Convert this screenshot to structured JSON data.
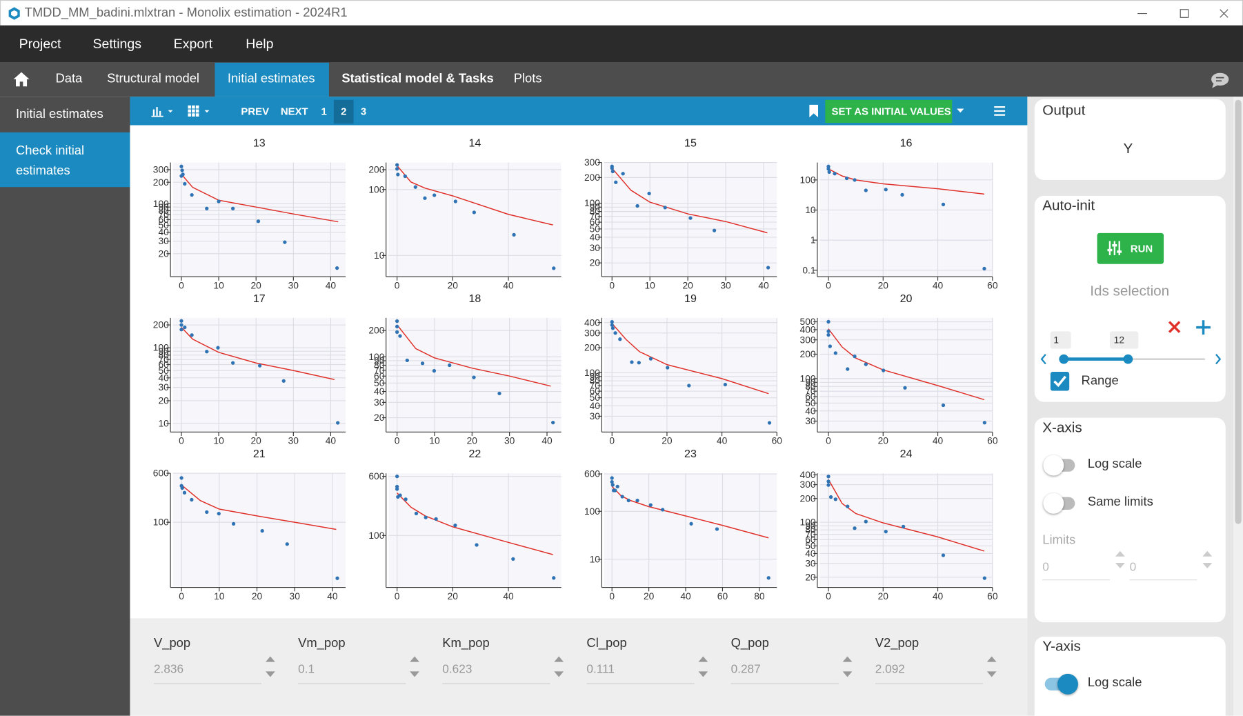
{
  "window": {
    "title": "TMDD_MM_badini.mlxtran - Monolix estimation - 2024R1"
  },
  "menu": [
    "Project",
    "Settings",
    "Export",
    "Help"
  ],
  "tabs": [
    "Data",
    "Structural model",
    "Initial estimates",
    "Statistical model & Tasks",
    "Plots"
  ],
  "sidebar": [
    "Initial estimates",
    "Check initial estimates"
  ],
  "toolbar": {
    "prev": "PREV",
    "next": "NEXT",
    "pages": [
      1,
      2,
      3
    ],
    "set_button": "SET AS INITIAL VALUES"
  },
  "chart_data": [
    {
      "type": "scatter",
      "title": "13",
      "log_y": true,
      "grid": true,
      "point_color": "#2f73b4",
      "line_color": "#e0302a",
      "xlim": [
        -2.3,
        44
      ],
      "ylim": [
        9.8,
        378
      ],
      "xticks": [
        0,
        10,
        20,
        30,
        40
      ],
      "yticks": [
        300,
        200,
        100,
        90,
        80,
        70,
        60,
        50,
        40,
        30,
        20
      ],
      "x": [
        0,
        0.2,
        0,
        0.4,
        0.9,
        2.8,
        6.8,
        10,
        13.8,
        20.6,
        27.7,
        41.7
      ],
      "values": [
        333,
        294,
        245,
        258,
        190,
        133,
        86,
        108,
        86,
        57,
        29,
        12.6
      ],
      "fit_x": [
        0,
        3,
        10,
        20,
        30,
        42
      ],
      "fit_values": [
        260,
        170,
        112,
        90,
        72,
        56
      ]
    },
    {
      "type": "scatter",
      "title": "14",
      "log_y": true,
      "grid": true,
      "point_color": "#2f73b4",
      "line_color": "#e0302a",
      "xlim": [
        -3.1,
        59
      ],
      "ylim": [
        4.9,
        257
      ],
      "xticks": [
        0,
        20,
        40
      ],
      "yticks": [
        200,
        100,
        10
      ],
      "x": [
        0,
        0,
        0.3,
        2.9,
        6.6,
        10,
        13.4,
        21,
        27.7,
        42,
        56.3
      ],
      "values": [
        236,
        206,
        169,
        159,
        109,
        74,
        82,
        66,
        45,
        20.6,
        6.4
      ],
      "fit_x": [
        0,
        5,
        10,
        20,
        40,
        56
      ],
      "fit_values": [
        230,
        130,
        105,
        80,
        42,
        29
      ]
    },
    {
      "type": "scatter",
      "title": "15",
      "log_y": true,
      "grid": true,
      "point_color": "#2f73b4",
      "line_color": "#e0302a",
      "xlim": [
        -2.1,
        43.5
      ],
      "ylim": [
        14.1,
        300
      ],
      "xticks": [
        0,
        10,
        20,
        30,
        40
      ],
      "yticks": [
        300,
        200,
        100,
        90,
        80,
        70,
        60,
        50,
        40,
        30,
        20
      ],
      "x": [
        0,
        0,
        0.2,
        1,
        2.9,
        6.7,
        9.8,
        14,
        20.7,
        27,
        41.2
      ],
      "values": [
        270,
        258,
        236,
        176,
        222,
        93,
        130,
        89,
        67,
        48,
        17.6
      ],
      "fit_x": [
        0,
        5,
        10,
        20,
        30,
        41
      ],
      "fit_values": [
        258,
        142,
        103,
        75,
        61,
        45
      ]
    },
    {
      "type": "scatter",
      "title": "16",
      "log_y": true,
      "grid": true,
      "point_color": "#2f73b4",
      "line_color": "#e0302a",
      "xlim": [
        -3.2,
        60
      ],
      "ylim": [
        0.065,
        379
      ],
      "xticks": [
        0,
        20,
        40,
        60
      ],
      "yticks": [
        100,
        10,
        1,
        0.1
      ],
      "x": [
        0,
        0,
        0.3,
        2.3,
        6.7,
        9.6,
        13.7,
        21,
        27,
        42,
        57
      ],
      "values": [
        280,
        233,
        183,
        162,
        113,
        100,
        45,
        48,
        32,
        15.3,
        0.113
      ],
      "fit_x": [
        0,
        5,
        10,
        20,
        40,
        57
      ],
      "fit_values": [
        233,
        135,
        100,
        74,
        51,
        34
      ]
    },
    {
      "type": "scatter",
      "title": "17",
      "log_y": true,
      "grid": true,
      "point_color": "#2f73b4",
      "line_color": "#e0302a",
      "xlim": [
        -2.3,
        44
      ],
      "ylim": [
        7.9,
        248
      ],
      "xticks": [
        0,
        10,
        20,
        30,
        40
      ],
      "yticks": [
        200,
        100,
        90,
        80,
        70,
        60,
        50,
        40,
        30,
        20,
        10
      ],
      "x": [
        0,
        0,
        0,
        0.9,
        2.8,
        6.8,
        9.8,
        13.8,
        21,
        27.4,
        41.9
      ],
      "values": [
        226,
        200,
        174,
        186,
        147,
        89,
        100,
        63,
        58,
        36.5,
        10.2
      ],
      "fit_x": [
        0,
        3,
        10,
        20,
        30,
        41
      ],
      "fit_values": [
        186,
        130,
        87,
        63,
        50,
        38
      ]
    },
    {
      "type": "scatter",
      "title": "18",
      "log_y": true,
      "grid": true,
      "point_color": "#2f73b4",
      "line_color": "#e0302a",
      "xlim": [
        -2.3,
        43.8
      ],
      "ylim": [
        14,
        279
      ],
      "xticks": [
        0,
        10,
        20,
        30,
        40
      ],
      "yticks": [
        200,
        100,
        90,
        80,
        70,
        60,
        50,
        40,
        30,
        20
      ],
      "x": [
        0,
        0,
        0,
        0.8,
        2.7,
        6.8,
        9.9,
        14,
        20.5,
        27.3,
        41.6
      ],
      "values": [
        256,
        222,
        192,
        173,
        91,
        84,
        69,
        80,
        58,
        38,
        17.6
      ],
      "fit_x": [
        0,
        5,
        10,
        20,
        30,
        41
      ],
      "fit_values": [
        232,
        124,
        97,
        74,
        60,
        46
      ]
    },
    {
      "type": "scatter",
      "title": "19",
      "log_y": true,
      "grid": true,
      "point_color": "#2f73b4",
      "line_color": "#e0302a",
      "xlim": [
        -2.9,
        60
      ],
      "ylim": [
        19.8,
        456
      ],
      "xticks": [
        0,
        20,
        40,
        60
      ],
      "yticks": [
        400,
        300,
        200,
        100,
        90,
        80,
        70,
        60,
        50,
        40,
        30
      ],
      "x": [
        0,
        0,
        0.3,
        1.2,
        2.9,
        7.2,
        9.8,
        14.1,
        20.2,
        28,
        41.2,
        57.3
      ],
      "values": [
        408,
        374,
        343,
        300,
        253,
        134,
        132,
        147,
        115,
        70,
        72,
        25
      ],
      "fit_x": [
        0,
        5,
        10,
        20,
        40,
        57
      ],
      "fit_values": [
        390,
        253,
        179,
        125,
        85,
        56
      ]
    },
    {
      "type": "scatter",
      "title": "20",
      "log_y": true,
      "grid": true,
      "point_color": "#2f73b4",
      "line_color": "#e0302a",
      "xlim": [
        -3.2,
        60
      ],
      "ylim": [
        22.5,
        559
      ],
      "xticks": [
        0,
        20,
        40,
        60
      ],
      "yticks": [
        500,
        400,
        300,
        200,
        100,
        90,
        80,
        70,
        60,
        50,
        40,
        30
      ],
      "x": [
        0,
        0,
        0,
        0.6,
        2.6,
        7,
        9.6,
        13.7,
        20.1,
        28,
        42,
        57.1
      ],
      "values": [
        501,
        382,
        345,
        250,
        206,
        131,
        188,
        150,
        126,
        77,
        47,
        28.7
      ],
      "fit_x": [
        0,
        5,
        10,
        20,
        40,
        57
      ],
      "fit_values": [
        410,
        245,
        179,
        128,
        82,
        55
      ]
    },
    {
      "type": "scatter",
      "title": "21",
      "log_y": true,
      "grid": true,
      "point_color": "#2f73b4",
      "line_color": "#e0302a",
      "xlim": [
        -2.3,
        43.5
      ],
      "ylim": [
        9.5,
        600
      ],
      "xticks": [
        0,
        10,
        20,
        30,
        40
      ],
      "yticks": [
        600,
        100
      ],
      "x": [
        0,
        0,
        0.2,
        0.8,
        2.7,
        6.7,
        9.9,
        13.8,
        21.4,
        28,
        41.3
      ],
      "values": [
        505,
        380,
        350,
        295,
        228,
        145,
        137,
        94.5,
        73,
        45,
        12.9
      ],
      "fit_x": [
        0,
        5,
        10,
        20,
        30,
        41
      ],
      "fit_values": [
        391,
        221,
        162,
        126,
        100,
        77
      ]
    },
    {
      "type": "scatter",
      "title": "22",
      "log_y": true,
      "grid": true,
      "point_color": "#2f73b4",
      "line_color": "#e0302a",
      "xlim": [
        -3.1,
        59
      ],
      "ylim": [
        21.2,
        660
      ],
      "xticks": [
        0,
        20,
        40
      ],
      "yticks": [
        600,
        100
      ],
      "x": [
        0,
        0,
        0,
        0.3,
        1.1,
        3.1,
        6.9,
        10.3,
        14,
        20.9,
        28.6,
        41.7,
        56.3
      ],
      "values": [
        600,
        440,
        409,
        322,
        338,
        300,
        195,
        173,
        165,
        136,
        75,
        49,
        27.6
      ],
      "fit_x": [
        0,
        5,
        10,
        20,
        40,
        56
      ],
      "fit_values": [
        363,
        236,
        182,
        130,
        81,
        56
      ]
    },
    {
      "type": "scatter",
      "title": "23",
      "log_y": true,
      "grid": true,
      "point_color": "#2f73b4",
      "line_color": "#e0302a",
      "xlim": [
        -4.3,
        89.5
      ],
      "ylim": [
        2.7,
        620
      ],
      "xticks": [
        0,
        20,
        40,
        60,
        80
      ],
      "yticks": [
        600,
        100,
        10
      ],
      "x": [
        0,
        0,
        0.4,
        0.9,
        1.7,
        3,
        5.6,
        9,
        13.8,
        21,
        27.5,
        43,
        57,
        85
      ],
      "values": [
        494,
        410,
        354,
        272,
        272,
        328,
        202,
        168,
        168,
        135,
        108,
        55,
        42.6,
        4.1
      ],
      "fit_x": [
        0,
        5,
        10,
        20,
        40,
        60,
        85
      ],
      "fit_values": [
        328,
        210,
        168,
        125,
        80,
        51,
        28
      ]
    },
    {
      "type": "scatter",
      "title": "24",
      "log_y": true,
      "grid": true,
      "point_color": "#2f73b4",
      "line_color": "#e0302a",
      "xlim": [
        -3.2,
        60
      ],
      "ylim": [
        15.2,
        419
      ],
      "xticks": [
        0,
        20,
        40,
        60
      ],
      "yticks": [
        400,
        300,
        200,
        100,
        90,
        80,
        70,
        60,
        50,
        40,
        30,
        20
      ],
      "x": [
        0,
        0,
        0,
        0.9,
        2.6,
        7,
        9.6,
        13.7,
        21,
        27.4,
        42,
        57.1
      ],
      "values": [
        381,
        330,
        297,
        209,
        196,
        159,
        84,
        102,
        76,
        88,
        38,
        19.5
      ],
      "fit_x": [
        0,
        5,
        10,
        20,
        40,
        57
      ],
      "fit_values": [
        350,
        173,
        129,
        98,
        65,
        43
      ]
    }
  ],
  "parameters": [
    {
      "name": "V_pop",
      "value": 2.836
    },
    {
      "name": "Vm_pop",
      "value": 0.1
    },
    {
      "name": "Km_pop",
      "value": 0.623
    },
    {
      "name": "Cl_pop",
      "value": 0.111
    },
    {
      "name": "Q_pop",
      "value": 0.287
    },
    {
      "name": "V2_pop",
      "value": 2.092
    }
  ],
  "right_panel": {
    "output": {
      "title": "Output",
      "value": "Y"
    },
    "auto_init": {
      "title": "Auto-init",
      "run": "RUN",
      "ids_selection": "Ids selection",
      "range_min": 1,
      "range_max": 12,
      "range_label": "Range"
    },
    "x_axis": {
      "title": "X-axis",
      "log_scale": "Log scale",
      "same_limits": "Same limits",
      "limits": "Limits",
      "limit_min": 0,
      "limit_max": 0
    },
    "y_axis": {
      "title": "Y-axis",
      "log_scale": "Log scale"
    }
  }
}
